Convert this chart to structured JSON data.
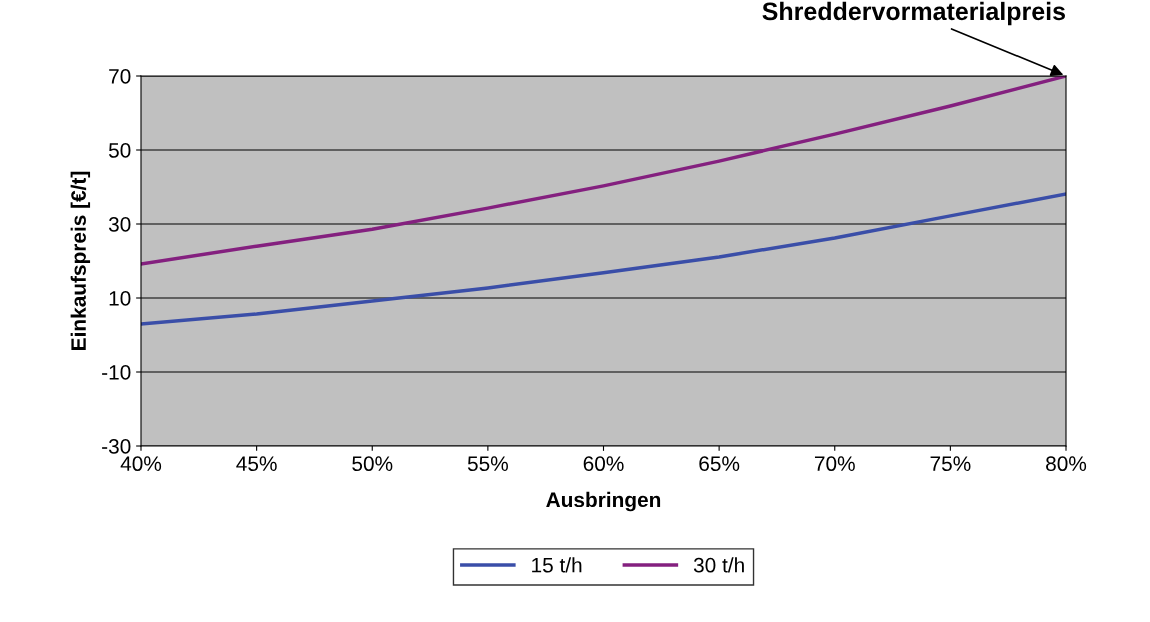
{
  "chart_data": {
    "type": "line",
    "xlabel": "Ausbringen",
    "ylabel": "Einkaufspreis [€/t]",
    "x": [
      40,
      45,
      50,
      55,
      60,
      65,
      70,
      75,
      80
    ],
    "series": [
      {
        "name": "15 t/h",
        "color": "#3a4ea8",
        "values": [
          3,
          5.7,
          9.2,
          12.7,
          16.8,
          21.1,
          26.2,
          32.2,
          38.1
        ]
      },
      {
        "name": "30 t/h",
        "color": "#84207f",
        "values": [
          19.2,
          24,
          28.6,
          34.3,
          40.3,
          47,
          54.3,
          61.9,
          70
        ]
      }
    ],
    "xlim": [
      40,
      80
    ],
    "xticks": [
      {
        "value": 40,
        "label": "40%"
      },
      {
        "value": 45,
        "label": "45%"
      },
      {
        "value": 50,
        "label": "50%"
      },
      {
        "value": 55,
        "label": "55%"
      },
      {
        "value": 60,
        "label": "60%"
      },
      {
        "value": 65,
        "label": "65%"
      },
      {
        "value": 70,
        "label": "70%"
      },
      {
        "value": 75,
        "label": "75%"
      },
      {
        "value": 80,
        "label": "80%"
      }
    ],
    "ylim": [
      -30,
      70
    ],
    "yticks": [
      -30,
      -10,
      10,
      30,
      50,
      70
    ],
    "grid": "y",
    "legend": "bottom",
    "marker": "none",
    "line_style": "solid",
    "annotations": [
      {
        "text": "Shreddervormaterialpreis",
        "x": 80,
        "y": 70
      }
    ]
  }
}
